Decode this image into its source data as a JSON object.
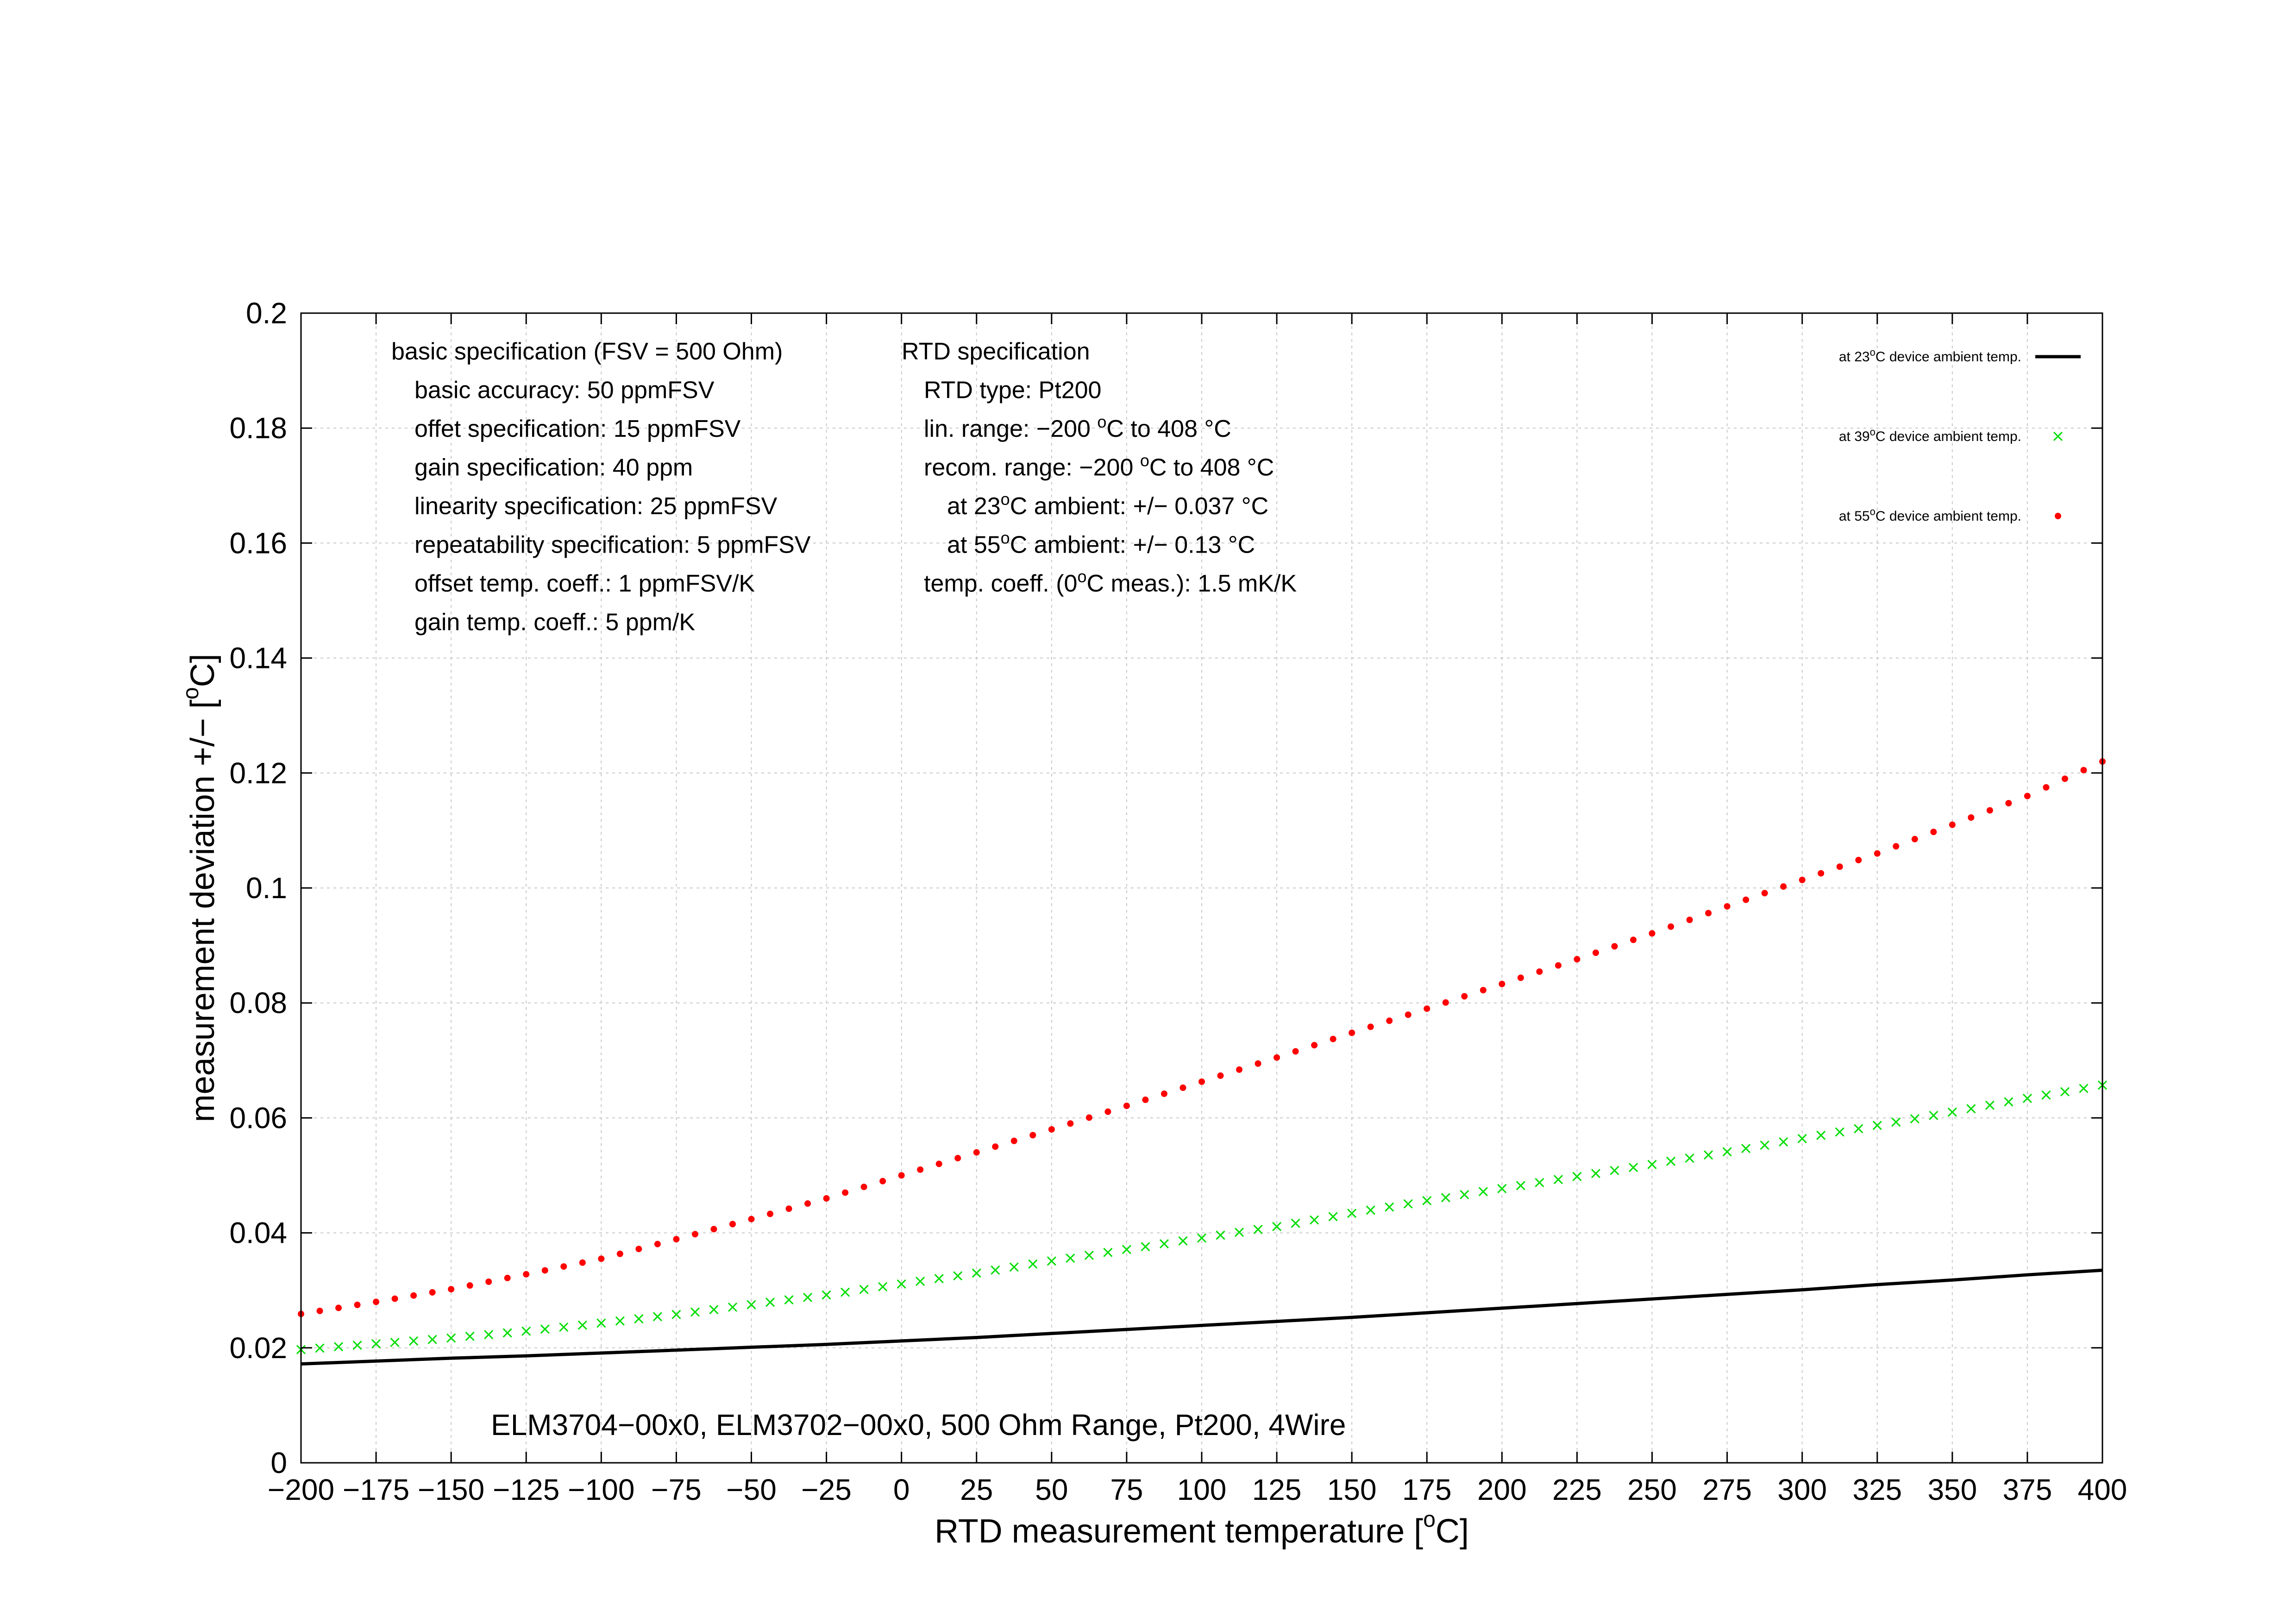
{
  "chart_data": {
    "type": "line",
    "subtitle": "ELM3704−00x0, ELM3702−00x0, 500 Ohm Range, Pt200, 4Wire",
    "xlabel": "RTD measurement temperature [°C]",
    "xlabel_parts": {
      "pre": "RTD measurement temperature [",
      "sup": "o",
      "post": "C]"
    },
    "ylabel": "measurement deviation +/− [°C]",
    "ylabel_parts": {
      "pre": "measurement deviation +/− [",
      "sup": "o",
      "post": "C]"
    },
    "xlim": [
      -200,
      400
    ],
    "ylim": [
      0,
      0.2
    ],
    "grid": true,
    "legend_position": "top-right",
    "x_ticks": [
      -200,
      -175,
      -150,
      -125,
      -100,
      -75,
      -50,
      -25,
      0,
      25,
      50,
      75,
      100,
      125,
      150,
      175,
      200,
      225,
      250,
      275,
      300,
      325,
      350,
      375,
      400
    ],
    "x_tick_labels": [
      "−200",
      "−175",
      "−150",
      "−125",
      "−100",
      "−75",
      "−50",
      "−25",
      "0",
      "25",
      "50",
      "75",
      "100",
      "125",
      "150",
      "175",
      "200",
      "225",
      "250",
      "275",
      "300",
      "325",
      "350",
      "375",
      "400"
    ],
    "y_ticks": [
      0,
      0.02,
      0.04,
      0.06,
      0.08,
      0.1,
      0.12,
      0.14,
      0.16,
      0.18,
      0.2
    ],
    "y_tick_labels": [
      "0",
      "0.02",
      "0.04",
      "0.06",
      "0.08",
      "0.1",
      "0.12",
      "0.14",
      "0.16",
      "0.18",
      "0.2"
    ],
    "x": [
      -200,
      -175,
      -150,
      -125,
      -100,
      -75,
      -50,
      -25,
      0,
      25,
      50,
      75,
      100,
      125,
      150,
      175,
      200,
      225,
      250,
      275,
      300,
      325,
      350,
      375,
      400
    ],
    "series": [
      {
        "name": "at 23°C device ambient temp.",
        "legend_parts": {
          "pre": "at 23",
          "sup": "o",
          "post": "C device ambient temp."
        },
        "style": "line",
        "color": "#000000",
        "values": [
          0.0172,
          0.0177,
          0.0182,
          0.0186,
          0.0191,
          0.0196,
          0.0201,
          0.0206,
          0.0212,
          0.0218,
          0.0225,
          0.0232,
          0.0239,
          0.0246,
          0.0253,
          0.0261,
          0.0269,
          0.0277,
          0.0285,
          0.0293,
          0.0301,
          0.031,
          0.0318,
          0.0327,
          0.0335
        ]
      },
      {
        "name": "at 39°C device ambient temp.",
        "legend_parts": {
          "pre": "at 39",
          "sup": "o",
          "post": "C device ambient temp."
        },
        "style": "cross",
        "color": "#00dd00",
        "values": [
          0.0197,
          0.0207,
          0.0217,
          0.0229,
          0.0243,
          0.0258,
          0.0275,
          0.0292,
          0.0311,
          0.033,
          0.0351,
          0.0371,
          0.0391,
          0.0411,
          0.0434,
          0.0456,
          0.0477,
          0.0498,
          0.0519,
          0.0541,
          0.0564,
          0.0587,
          0.061,
          0.0634,
          0.0657
        ]
      },
      {
        "name": "at 55°C device ambient temp.",
        "legend_parts": {
          "pre": "at 55",
          "sup": "o",
          "post": "C device ambient temp."
        },
        "style": "dot",
        "color": "#ff0000",
        "values": [
          0.0259,
          0.028,
          0.0302,
          0.0328,
          0.0355,
          0.0389,
          0.0424,
          0.046,
          0.05,
          0.054,
          0.058,
          0.0621,
          0.0663,
          0.0705,
          0.0748,
          0.079,
          0.0833,
          0.0876,
          0.0921,
          0.0968,
          0.1014,
          0.106,
          0.111,
          0.116,
          0.122
        ]
      }
    ],
    "annotations": {
      "basic": [
        "basic specification (FSV = 500 Ohm)",
        "basic accuracy: 50 ppmFSV",
        "offet specification: 15 ppmFSV",
        "gain specification: 40 ppm",
        "linearity specification: 25 ppmFSV",
        "repeatability specification: 5 ppmFSV",
        "offset temp. coeff.: 1 ppmFSV/K",
        "gain temp. coeff.: 5 ppm/K"
      ],
      "rtd": [
        {
          "pre": "RTD specification",
          "sup": "",
          "post": ""
        },
        {
          "pre": "RTD type: Pt200",
          "sup": "",
          "post": ""
        },
        {
          "pre": "lin. range: −200 ",
          "sup": "o",
          "post": "C to 408 °C"
        },
        {
          "pre": "recom. range: −200 ",
          "sup": "o",
          "post": "C to 408 °C"
        },
        {
          "pre": "at 23",
          "sup": "o",
          "post": "C ambient: +/− 0.037 °C"
        },
        {
          "pre": "at 55",
          "sup": "o",
          "post": "C ambient: +/− 0.13 °C"
        },
        {
          "pre": "temp. coeff. (0",
          "sup": "o",
          "post": "C meas.): 1.5 mK/K"
        }
      ]
    }
  }
}
